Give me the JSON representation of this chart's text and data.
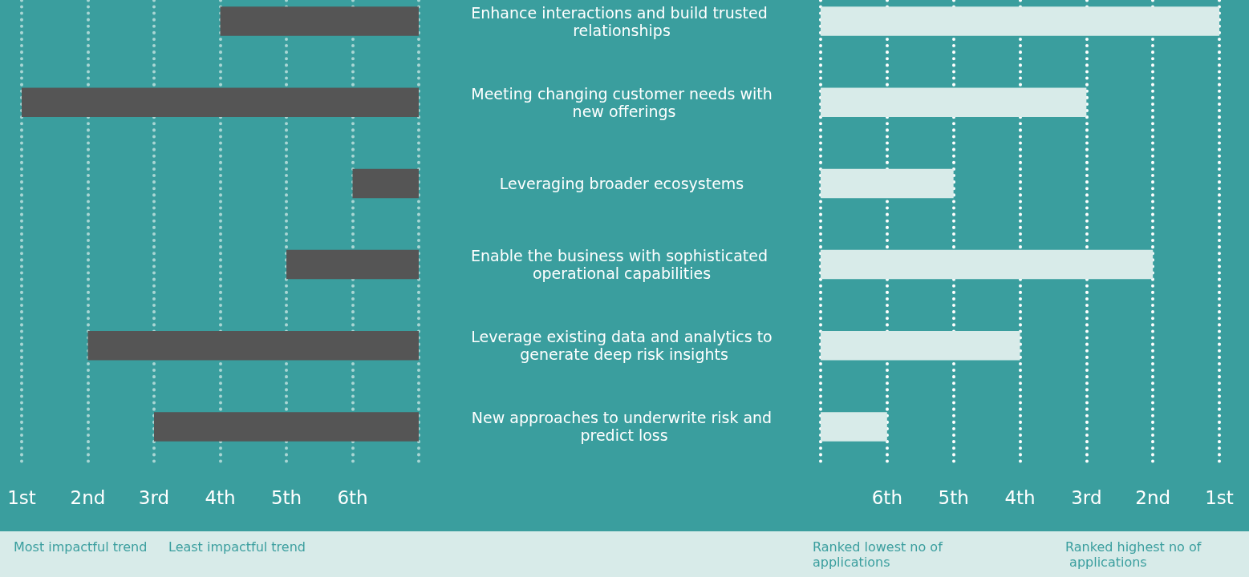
{
  "chart_data": [
    {
      "type": "bar",
      "orientation": "horizontal",
      "categories": [
        "Enhance interactions and build trusted relationships",
        "Meeting changing customer needs with new offerings",
        "Leveraging broader ecosystems",
        "Enable the business with sophisticated operational capabilities",
        "Leverage existing data and analytics to generate deep risk insights",
        "New approaches to underwrite risk and predict loss"
      ],
      "values": [
        3,
        6,
        1,
        2,
        5,
        4
      ],
      "base": [
        4,
        1,
        6,
        5,
        2,
        3
      ],
      "color": "#555555",
      "xlim": [
        1,
        7
      ],
      "xticks": [
        {
          "value": 1,
          "label": "1st"
        },
        {
          "value": 2,
          "label": "2nd"
        },
        {
          "value": 3,
          "label": "3rd"
        },
        {
          "value": 4,
          "label": "4th"
        },
        {
          "value": 5,
          "label": "5th"
        },
        {
          "value": 6,
          "label": "6th"
        },
        {
          "value": 7,
          "label": null
        }
      ],
      "grid": "x",
      "annotations": [
        "Most impactful trend",
        "Least impactful trend"
      ]
    },
    {
      "type": "bar",
      "orientation": "horizontal",
      "categories": [
        "Enhance interactions and build trusted relationships",
        "Meeting changing customer needs with new offerings",
        "Leveraging broader ecosystems",
        "Enable the business with sophisticated operational capabilities",
        "Leverage existing data and analytics to generate deep risk insights",
        "New approaches to underwrite risk and predict loss"
      ],
      "values": [
        -6,
        -4,
        -2,
        -5,
        -3,
        -1
      ],
      "base": [
        7,
        7,
        7,
        7,
        7,
        7
      ],
      "color": "#d8ebe9",
      "xlim": [
        7,
        1
      ],
      "xticks": [
        {
          "value": 7,
          "label": null
        },
        {
          "value": 6,
          "label": "6th"
        },
        {
          "value": 5,
          "label": "5th"
        },
        {
          "value": 4,
          "label": "4th"
        },
        {
          "value": 3,
          "label": "3rd"
        },
        {
          "value": 2,
          "label": "2nd"
        },
        {
          "value": 1,
          "label": "1st"
        }
      ],
      "grid": "x",
      "tick_labels": "x",
      "annotations": [
        "Ranked lowest no of applications",
        "Ranked highest no of applications"
      ]
    }
  ]
}
